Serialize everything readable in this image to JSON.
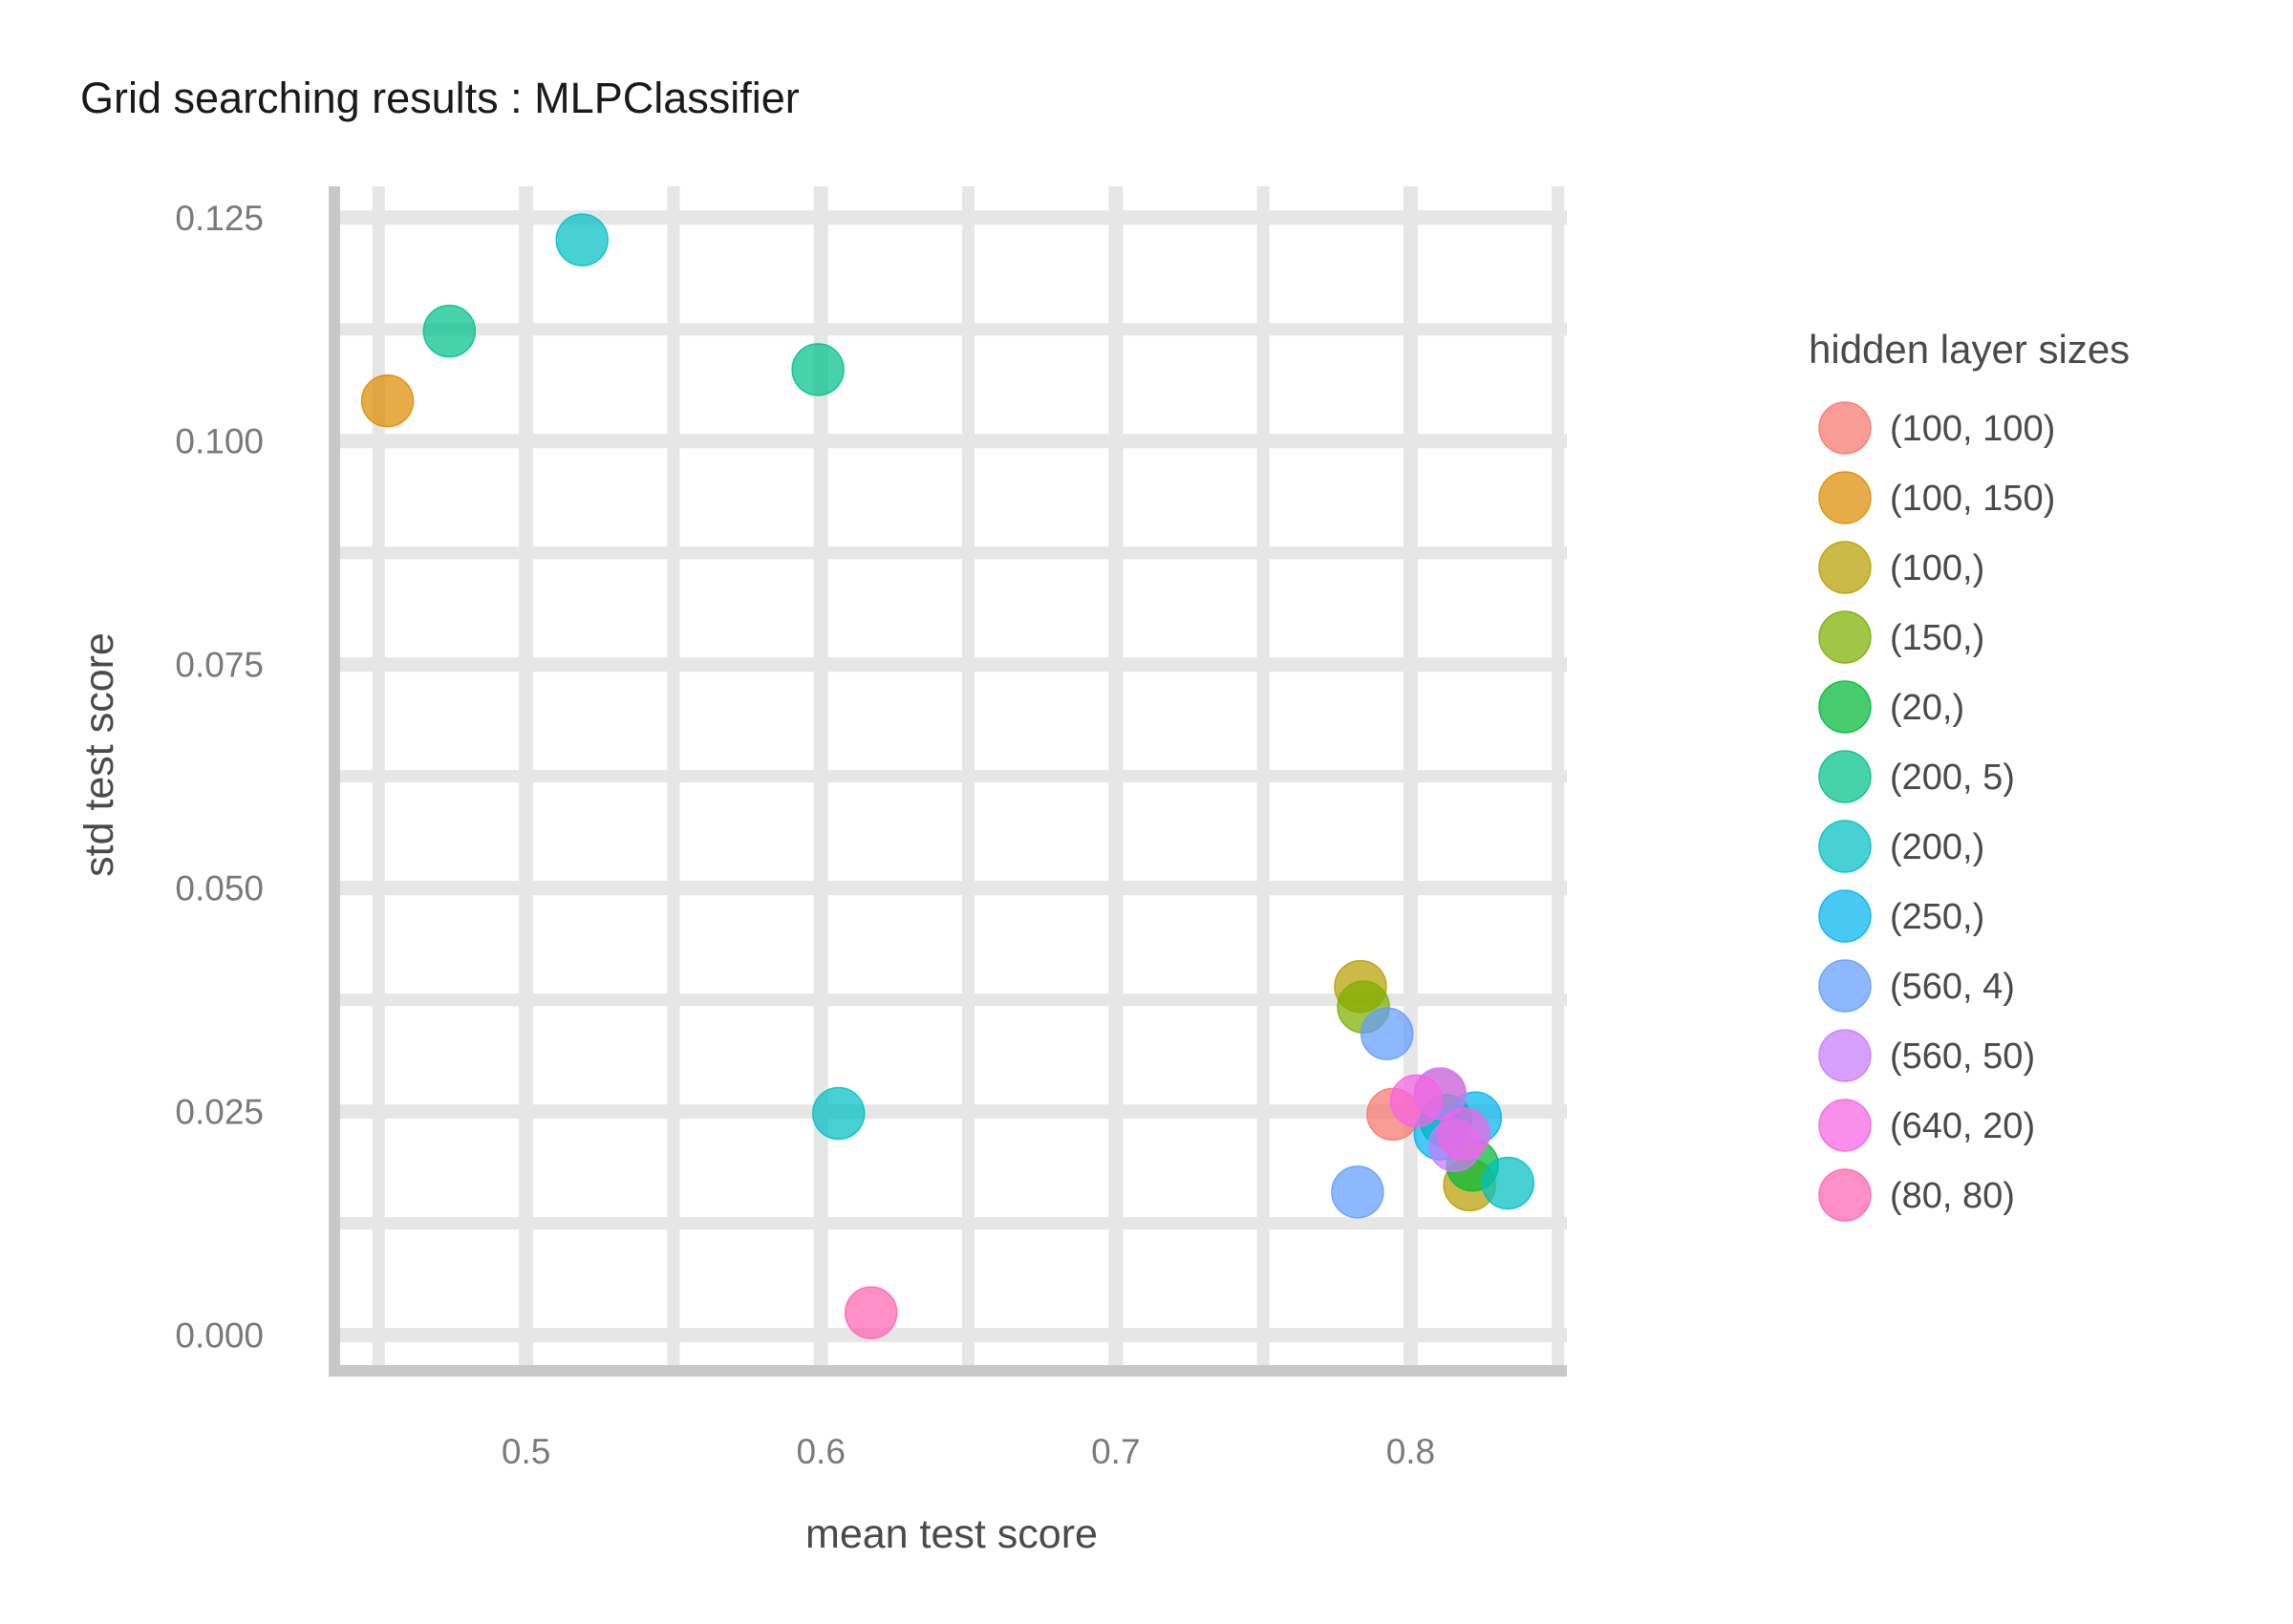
{
  "chart_data": {
    "type": "scatter",
    "title": "Grid searching results :  MLPClassifier",
    "xlabel": "mean test score",
    "ylabel": "std test score",
    "xlim": [
      0.435,
      0.853
    ],
    "ylim": [
      -0.004,
      0.1285
    ],
    "x_ticks": [
      0.5,
      0.6,
      0.7,
      0.8
    ],
    "x_tick_labels": [
      "0.5",
      "0.6",
      "0.7",
      "0.8"
    ],
    "y_ticks": [
      0.0,
      0.025,
      0.05,
      0.075,
      0.1,
      0.125
    ],
    "y_tick_labels": [
      "0.000",
      "0.025",
      "0.050",
      "0.075",
      "0.100",
      "0.125"
    ],
    "grid": true,
    "legend_position": "right",
    "legend": {
      "title": "hidden layer sizes",
      "entries": [
        {
          "label": "(100, 100)",
          "color": "#F8766D"
        },
        {
          "label": "(100, 150)",
          "color": "#DE8C00"
        },
        {
          "label": "(100,)",
          "color": "#B79F00"
        },
        {
          "label": "(150,)",
          "color": "#7CAE00"
        },
        {
          "label": "(20,)",
          "color": "#00BA38"
        },
        {
          "label": "(200, 5)",
          "color": "#00C08B"
        },
        {
          "label": "(200,)",
          "color": "#00BFC4"
        },
        {
          "label": "(250,)",
          "color": "#00B4F0"
        },
        {
          "label": "(560, 4)",
          "color": "#619CFF"
        },
        {
          "label": "(560, 50)",
          "color": "#C77CFF"
        },
        {
          "label": "(640, 20)",
          "color": "#F564E3"
        },
        {
          "label": "(80, 80)",
          "color": "#FF64B0"
        }
      ]
    },
    "series": [
      {
        "name": "(100, 100)",
        "points": [
          [
            0.794,
            0.0247
          ],
          [
            0.81,
            0.0268
          ]
        ]
      },
      {
        "name": "(100, 150)",
        "points": [
          [
            0.453,
            0.1045
          ]
        ]
      },
      {
        "name": "(100,)",
        "points": [
          [
            0.783,
            0.039
          ],
          [
            0.82,
            0.0168
          ]
        ]
      },
      {
        "name": "(150,)",
        "points": [
          [
            0.784,
            0.0367
          ]
        ]
      },
      {
        "name": "(20,)",
        "points": [
          [
            0.812,
            0.024
          ],
          [
            0.821,
            0.019
          ]
        ]
      },
      {
        "name": "(200, 5)",
        "points": [
          [
            0.474,
            0.1123
          ],
          [
            0.599,
            0.108
          ]
        ]
      },
      {
        "name": "(200,)",
        "points": [
          [
            0.519,
            0.1225
          ],
          [
            0.606,
            0.0248
          ],
          [
            0.833,
            0.017
          ]
        ]
      },
      {
        "name": "(250,)",
        "points": [
          [
            0.822,
            0.0243
          ],
          [
            0.81,
            0.0225
          ]
        ]
      },
      {
        "name": "(560, 4)",
        "points": [
          [
            0.792,
            0.0337
          ],
          [
            0.782,
            0.016
          ]
        ]
      },
      {
        "name": "(560, 50)",
        "points": [
          [
            0.81,
            0.027
          ],
          [
            0.815,
            0.0212
          ]
        ]
      },
      {
        "name": "(640, 20)",
        "points": [
          [
            0.802,
            0.0262
          ],
          [
            0.818,
            0.0225
          ]
        ]
      },
      {
        "name": "(80, 80)",
        "points": [
          [
            0.617,
            0.0025
          ]
        ]
      }
    ]
  }
}
